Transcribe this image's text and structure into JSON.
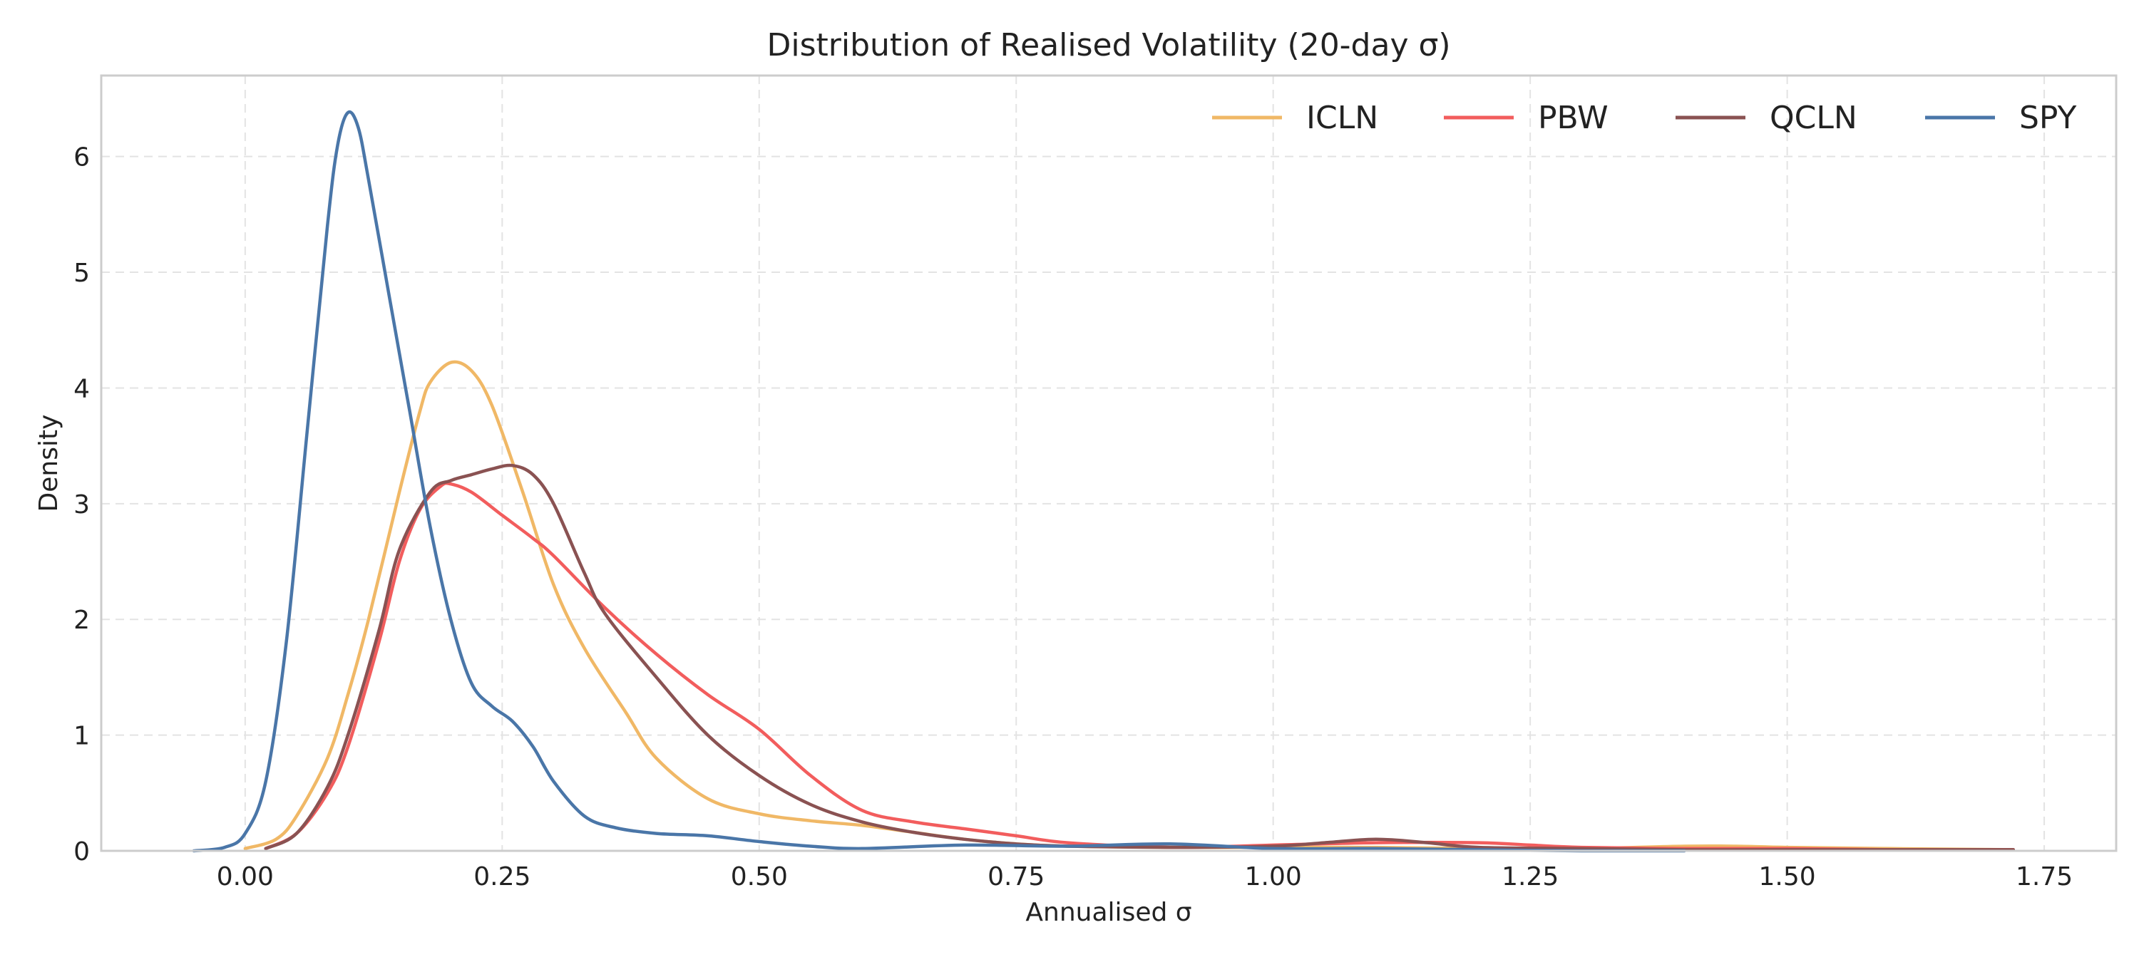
{
  "chart_data": {
    "type": "line",
    "title": "Distribution of Realised Volatility (20-day σ)",
    "xlabel": "Annualised σ",
    "ylabel": "Density",
    "xlim": [
      -0.14,
      1.82
    ],
    "ylim": [
      0,
      6.7
    ],
    "xticks": [
      0.0,
      0.25,
      0.5,
      0.75,
      1.0,
      1.25,
      1.5,
      1.75
    ],
    "xtick_labels": [
      "0.00",
      "0.25",
      "0.50",
      "0.75",
      "1.00",
      "1.25",
      "1.50",
      "1.75"
    ],
    "yticks": [
      0,
      1,
      2,
      3,
      4,
      5,
      6
    ],
    "ytick_labels": [
      "0",
      "1",
      "2",
      "3",
      "4",
      "5",
      "6"
    ],
    "grid": true,
    "legend_position": "top-right",
    "series": [
      {
        "name": "ICLN",
        "color": "#f0b866",
        "x": [
          0.0,
          0.03,
          0.05,
          0.08,
          0.1,
          0.12,
          0.15,
          0.17,
          0.18,
          0.2,
          0.22,
          0.24,
          0.27,
          0.3,
          0.33,
          0.37,
          0.4,
          0.45,
          0.5,
          0.55,
          0.6,
          0.65,
          0.7,
          0.75,
          0.8,
          0.9,
          1.0,
          1.1,
          1.2,
          1.3,
          1.4,
          1.45,
          1.5,
          1.6,
          1.72
        ],
        "y": [
          0.02,
          0.1,
          0.3,
          0.8,
          1.35,
          2.0,
          3.1,
          3.8,
          4.05,
          4.22,
          4.15,
          3.85,
          3.1,
          2.3,
          1.75,
          1.2,
          0.8,
          0.45,
          0.32,
          0.26,
          0.22,
          0.16,
          0.1,
          0.06,
          0.04,
          0.03,
          0.03,
          0.03,
          0.02,
          0.02,
          0.04,
          0.04,
          0.03,
          0.02,
          0.01
        ]
      },
      {
        "name": "PBW",
        "color": "#f25d5d",
        "x": [
          0.02,
          0.05,
          0.08,
          0.1,
          0.13,
          0.15,
          0.17,
          0.19,
          0.2,
          0.22,
          0.25,
          0.28,
          0.3,
          0.35,
          0.4,
          0.45,
          0.5,
          0.55,
          0.6,
          0.65,
          0.7,
          0.75,
          0.8,
          0.9,
          1.0,
          1.1,
          1.2,
          1.25,
          1.3,
          1.4,
          1.5,
          1.6,
          1.72
        ],
        "y": [
          0.02,
          0.15,
          0.5,
          0.9,
          1.8,
          2.5,
          2.95,
          3.15,
          3.17,
          3.1,
          2.9,
          2.7,
          2.55,
          2.1,
          1.7,
          1.35,
          1.05,
          0.65,
          0.35,
          0.25,
          0.19,
          0.13,
          0.07,
          0.03,
          0.05,
          0.07,
          0.07,
          0.05,
          0.03,
          0.02,
          0.02,
          0.01,
          0.01
        ]
      },
      {
        "name": "QCLN",
        "color": "#8a5252",
        "x": [
          0.02,
          0.05,
          0.08,
          0.1,
          0.13,
          0.15,
          0.18,
          0.2,
          0.22,
          0.24,
          0.26,
          0.28,
          0.3,
          0.33,
          0.35,
          0.4,
          0.45,
          0.5,
          0.55,
          0.6,
          0.65,
          0.7,
          0.75,
          0.8,
          0.9,
          1.0,
          1.05,
          1.1,
          1.15,
          1.2,
          1.3,
          1.4,
          1.5,
          1.72
        ],
        "y": [
          0.02,
          0.15,
          0.55,
          1.0,
          1.9,
          2.6,
          3.1,
          3.2,
          3.25,
          3.3,
          3.33,
          3.25,
          3.0,
          2.4,
          2.05,
          1.5,
          1.0,
          0.65,
          0.4,
          0.25,
          0.16,
          0.1,
          0.06,
          0.04,
          0.03,
          0.04,
          0.07,
          0.1,
          0.07,
          0.03,
          0.02,
          0.01,
          0.01,
          0.01
        ]
      },
      {
        "name": "SPY",
        "color": "#4a76a8",
        "x": [
          -0.05,
          -0.02,
          0.0,
          0.02,
          0.04,
          0.06,
          0.08,
          0.09,
          0.1,
          0.11,
          0.12,
          0.14,
          0.16,
          0.18,
          0.2,
          0.22,
          0.24,
          0.26,
          0.28,
          0.3,
          0.33,
          0.36,
          0.4,
          0.45,
          0.5,
          0.55,
          0.6,
          0.7,
          0.8,
          0.9,
          1.0,
          1.1,
          1.2,
          1.3,
          1.4
        ],
        "y": [
          0.0,
          0.03,
          0.15,
          0.6,
          1.8,
          3.6,
          5.4,
          6.1,
          6.38,
          6.25,
          5.8,
          4.8,
          3.8,
          2.8,
          2.0,
          1.45,
          1.25,
          1.12,
          0.9,
          0.6,
          0.3,
          0.2,
          0.15,
          0.13,
          0.08,
          0.04,
          0.02,
          0.05,
          0.04,
          0.06,
          0.02,
          0.02,
          0.01,
          0.0,
          0.0
        ]
      }
    ]
  }
}
